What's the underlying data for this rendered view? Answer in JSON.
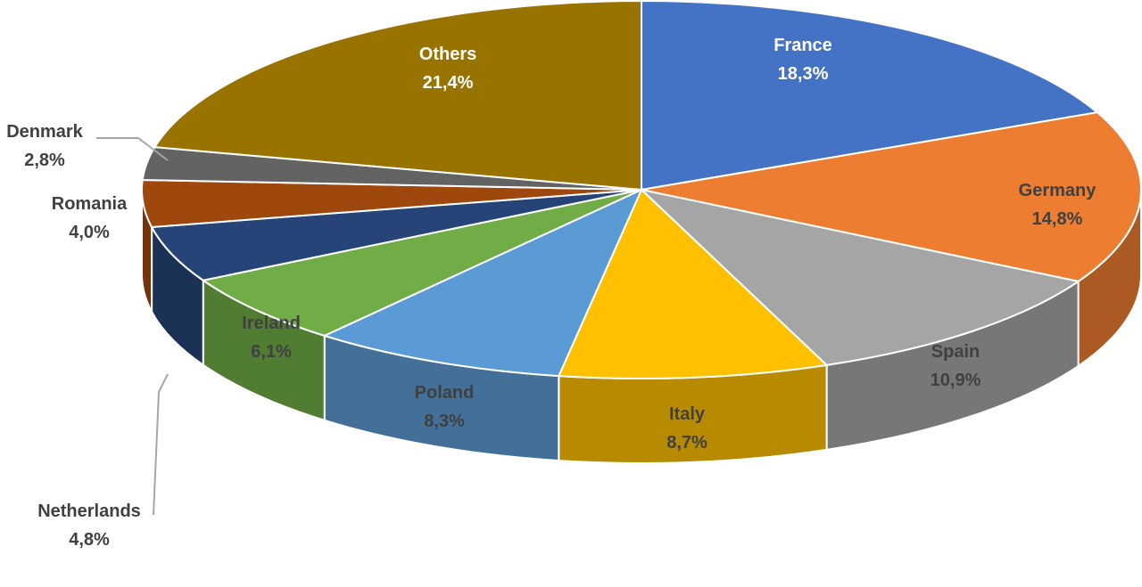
{
  "chart_data": {
    "type": "pie",
    "style": "3d",
    "title": "",
    "decimal_separator": ",",
    "categories": [
      "France",
      "Germany",
      "Spain",
      "Italy",
      "Poland",
      "Ireland",
      "Netherlands",
      "Romania",
      "Denmark",
      "Others"
    ],
    "values": [
      18.3,
      14.8,
      10.9,
      8.7,
      8.3,
      6.1,
      4.8,
      4.0,
      2.8,
      21.4
    ],
    "labels": [
      "18,3%",
      "14,8%",
      "10,9%",
      "8,7%",
      "8,3%",
      "6,1%",
      "4,8%",
      "4,0%",
      "2,8%",
      "21,4%"
    ],
    "colors": [
      "#4472C4",
      "#ED7D31",
      "#A5A5A5",
      "#FFC000",
      "#5B9BD5",
      "#70AD47",
      "#264478",
      "#9E480E",
      "#636363",
      "#997300"
    ],
    "legend": "none",
    "data_labels": "category name and percentage"
  }
}
